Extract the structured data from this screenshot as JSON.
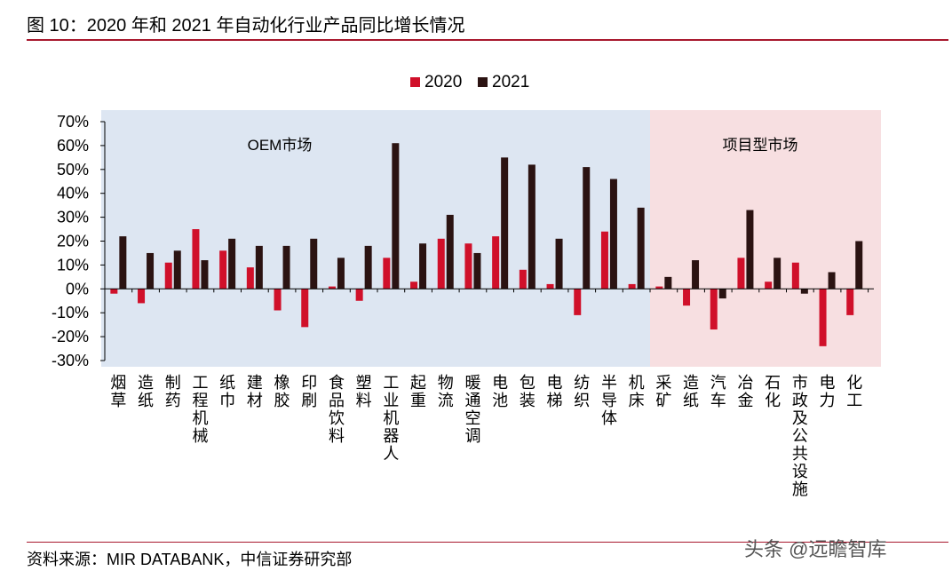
{
  "header": {
    "figure_title": "图 10：2020 年和 2021 年自动化行业产品同比增长情况"
  },
  "footer": {
    "source": "资料来源：MIR DATABANK，中信证券研究部",
    "watermark": "头条 @远瞻智库"
  },
  "colors": {
    "s2020": "#d0102a",
    "s2021": "#2b1312",
    "oem_bg": "#dde6f2",
    "project_bg": "#f7dfe1",
    "rule": "#a8182e"
  },
  "chart_data": {
    "type": "bar",
    "title": "",
    "xlabel": "",
    "ylabel": "",
    "ylim": [
      -0.3,
      0.7
    ],
    "yticks": [
      "70%",
      "60%",
      "50%",
      "40%",
      "30%",
      "20%",
      "10%",
      "0%",
      "-10%",
      "-20%",
      "-30%"
    ],
    "legend": {
      "position": "top-center",
      "labels": [
        "2020",
        "2021"
      ]
    },
    "regions": [
      {
        "label": "OEM市场",
        "first": 0,
        "last": 19
      },
      {
        "label": "项目型市场",
        "first": 20,
        "last": 27
      }
    ],
    "categories": [
      "烟草",
      "造纸",
      "制药",
      "工程机械",
      "纸巾",
      "建材",
      "橡胶",
      "印刷",
      "食品饮料",
      "塑料",
      "工业机器人",
      "起重",
      "物流",
      "暖通空调",
      "电池",
      "包装",
      "电梯",
      "纺织",
      "半导体",
      "机床",
      "采矿",
      "造纸",
      "汽车",
      "冶金",
      "石化",
      "市政及公共设施",
      "电力",
      "化工"
    ],
    "series": [
      {
        "name": "2020",
        "values": [
          -0.02,
          -0.06,
          0.11,
          0.25,
          0.16,
          0.09,
          -0.09,
          -0.16,
          0.01,
          -0.05,
          0.13,
          0.03,
          0.21,
          0.19,
          0.22,
          0.08,
          0.02,
          -0.11,
          0.24,
          0.02,
          0.01,
          -0.07,
          -0.17,
          0.13,
          0.03,
          0.11,
          -0.24,
          -0.11
        ]
      },
      {
        "name": "2021",
        "values": [
          0.22,
          0.15,
          0.16,
          0.12,
          0.21,
          0.18,
          0.18,
          0.21,
          0.13,
          0.18,
          0.61,
          0.19,
          0.31,
          0.15,
          0.55,
          0.52,
          0.21,
          0.51,
          0.46,
          0.34,
          0.05,
          0.12,
          -0.04,
          0.33,
          0.13,
          -0.02,
          0.07,
          0.2
        ]
      }
    ]
  }
}
